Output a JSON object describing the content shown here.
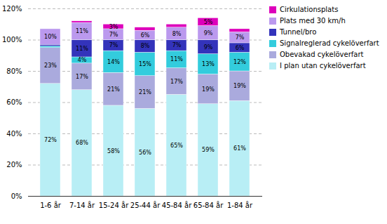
{
  "chart_data": {
    "type": "bar",
    "stacked": true,
    "categories": [
      "1-6 år",
      "7-14 år",
      "15-24 år",
      "25-44 år",
      "45-84 år",
      "65-84 år",
      "1-84 år"
    ],
    "series": [
      {
        "name": "I plan utan cykelöverfart",
        "color": "#b8eef5",
        "values": [
          72,
          68,
          58,
          56,
          65,
          59,
          61
        ],
        "value_labels": [
          "72%",
          "68%",
          "58%",
          "56%",
          "65%",
          "59%",
          "61%"
        ]
      },
      {
        "name": "Obevakad cykelöverfart",
        "color": "#aaaadd",
        "values": [
          23,
          17,
          21,
          21,
          17,
          19,
          19
        ],
        "value_labels": [
          "23%",
          "17%",
          "21%",
          "21%",
          "17%",
          "19%",
          "19%"
        ]
      },
      {
        "name": "Signalreglerad cykelöverfart",
        "color": "#33ccdd",
        "values": [
          1,
          4,
          14,
          15,
          11,
          13,
          12
        ],
        "value_labels": [
          null,
          "4%",
          "14%",
          "15%",
          "11%",
          "13%",
          "12%"
        ]
      },
      {
        "name": "Tunnel/bro",
        "color": "#3333bb",
        "values": [
          1,
          11,
          7,
          8,
          7,
          9,
          6
        ],
        "value_labels": [
          null,
          "11%",
          "7%",
          "8%",
          "7%",
          "9%",
          "6%"
        ]
      },
      {
        "name": "Plats med 30 km/h",
        "color": "#bb99ee",
        "values": [
          10,
          11,
          7,
          6,
          8,
          9,
          7
        ],
        "value_labels": [
          "10%",
          "11%",
          "7%",
          "6%",
          "8%",
          "9%",
          "7%"
        ]
      },
      {
        "name": "Cirkulationsplats",
        "color": "#dd00bb",
        "values": [
          0,
          1,
          3,
          2,
          2,
          5,
          2
        ],
        "value_labels": [
          null,
          null,
          "3%",
          null,
          null,
          "5%",
          null
        ]
      }
    ],
    "ylim": [
      0,
      120
    ],
    "yticks": [
      {
        "value": 0,
        "label": "0%"
      },
      {
        "value": 20,
        "label": "20%"
      },
      {
        "value": 40,
        "label": "40%"
      },
      {
        "value": 60,
        "label": "60%"
      },
      {
        "value": 80,
        "label": "80%"
      },
      {
        "value": 100,
        "label": "100%"
      },
      {
        "value": 120,
        "label": "120%"
      }
    ],
    "grid": true,
    "legend": "right",
    "data_labels": true
  }
}
